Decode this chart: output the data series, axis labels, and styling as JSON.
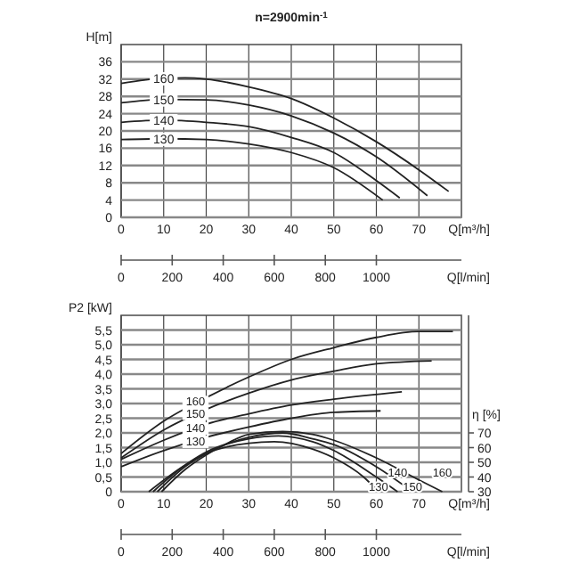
{
  "chart_data": [
    {
      "type": "line",
      "title": "n=2900min$^{-1}$",
      "xlabel": "Q[m³/h]",
      "ylabel": "H[m]",
      "x2label": "Q[l/min]",
      "xlim": [
        0,
        80
      ],
      "xticks": [
        0,
        10,
        20,
        30,
        40,
        50,
        60,
        70
      ],
      "ylim": [
        0,
        40
      ],
      "yticks": [
        0,
        4,
        8,
        12,
        16,
        20,
        24,
        28,
        32,
        36
      ],
      "x2lim": [
        0,
        1333.33
      ],
      "x2ticks": [
        0,
        200,
        400,
        600,
        800,
        1000
      ],
      "grid": true,
      "marker": "none",
      "line_style": "solid",
      "series": [
        {
          "name": "160",
          "color": "#222222",
          "x": [
            0,
            10,
            15,
            20,
            30,
            40,
            50,
            60,
            70,
            77
          ],
          "values": [
            31,
            32.2,
            32.3,
            32,
            30.2,
            27.5,
            23,
            17.5,
            11,
            6
          ]
        },
        {
          "name": "150",
          "color": "#222222",
          "x": [
            0,
            10,
            20,
            30,
            40,
            50,
            60,
            72
          ],
          "values": [
            26.5,
            27.3,
            27.2,
            26,
            23.5,
            19.5,
            14,
            5
          ]
        },
        {
          "name": "140",
          "color": "#222222",
          "x": [
            0,
            10,
            20,
            30,
            40,
            50,
            60,
            65.5
          ],
          "values": [
            22,
            22.5,
            22,
            21,
            18.5,
            15,
            8.5,
            4.5
          ]
        },
        {
          "name": "130",
          "color": "#222222",
          "x": [
            0,
            10,
            20,
            30,
            40,
            50,
            61.5
          ],
          "values": [
            18,
            18.2,
            18,
            17,
            15,
            11.5,
            4
          ]
        }
      ]
    },
    {
      "type": "line",
      "xlabel": "Q[m³/h]",
      "ylabel": "P2 [kW]",
      "y2label": "η [%]",
      "x2label": "Q[l/min]",
      "xlim": [
        0,
        80
      ],
      "xticks": [
        0,
        10,
        20,
        30,
        40,
        50,
        60,
        70
      ],
      "ylim": [
        0,
        6
      ],
      "yticks": [
        0,
        {
          "value": 0.5,
          "label": "0,5"
        },
        {
          "value": 1,
          "label": "1,0"
        },
        {
          "value": 1.5,
          "label": "1,5"
        },
        {
          "value": 2,
          "label": "2,0"
        },
        {
          "value": 2.5,
          "label": "2,5"
        },
        {
          "value": 3,
          "label": "3,0"
        },
        {
          "value": 3.5,
          "label": "3,5"
        },
        {
          "value": 4,
          "label": "4,0"
        },
        {
          "value": 4.5,
          "label": "4,5"
        },
        {
          "value": 5,
          "label": "5,0"
        },
        {
          "value": 5.5,
          "label": "5,5"
        }
      ],
      "y2lim": [
        30,
        150
      ],
      "y2ticks": [
        30,
        40,
        50,
        60,
        70
      ],
      "x2lim": [
        0,
        1333.33
      ],
      "x2ticks": [
        0,
        200,
        400,
        600,
        800,
        1000
      ],
      "grid": true,
      "marker": "none",
      "line_style": "solid",
      "series": [
        {
          "name": "160",
          "color": "#222222",
          "x": [
            0,
            10,
            20,
            30,
            40,
            50,
            60,
            70,
            78
          ],
          "values": [
            1.3,
            2.4,
            3.2,
            3.9,
            4.5,
            4.9,
            5.25,
            5.45,
            5.45
          ]
        },
        {
          "name": "150",
          "color": "#222222",
          "x": [
            0,
            10,
            20,
            30,
            40,
            50,
            60,
            73
          ],
          "values": [
            1.15,
            2.1,
            2.8,
            3.35,
            3.8,
            4.1,
            4.35,
            4.45
          ]
        },
        {
          "name": "140",
          "color": "#222222",
          "x": [
            0,
            10,
            20,
            30,
            40,
            50,
            66
          ],
          "values": [
            1.1,
            1.75,
            2.3,
            2.65,
            2.95,
            3.15,
            3.4
          ]
        },
        {
          "name": "130",
          "color": "#222222",
          "x": [
            0,
            10,
            20,
            30,
            40,
            50,
            61
          ],
          "values": [
            0.85,
            1.4,
            1.85,
            2.2,
            2.5,
            2.7,
            2.75
          ]
        },
        {
          "name": "160",
          "color": "#222222",
          "axis": "y2",
          "x": [
            9.5,
            15,
            20,
            25,
            30,
            38,
            45,
            50,
            60,
            70,
            75.5
          ],
          "values": [
            30,
            45,
            55,
            63,
            69,
            71,
            69,
            65,
            53,
            38,
            30
          ]
        },
        {
          "name": "150",
          "color": "#222222",
          "axis": "y2",
          "x": [
            8.5,
            15,
            20,
            30,
            38,
            45,
            50,
            60,
            68.5
          ],
          "values": [
            30,
            47,
            56,
            67,
            70,
            66,
            62,
            47,
            30
          ]
        },
        {
          "name": "140",
          "color": "#222222",
          "axis": "y2",
          "x": [
            7.5,
            15,
            20,
            30,
            37,
            45,
            50,
            60,
            65
          ],
          "values": [
            30,
            48,
            57,
            66,
            68,
            64,
            58,
            40,
            30
          ]
        },
        {
          "name": "130",
          "color": "#222222",
          "axis": "y2",
          "x": [
            6.5,
            15,
            20,
            30,
            36,
            45,
            50,
            57,
            60.5
          ],
          "values": [
            30,
            48,
            56,
            63,
            64,
            59,
            53,
            40,
            30
          ]
        }
      ]
    }
  ]
}
